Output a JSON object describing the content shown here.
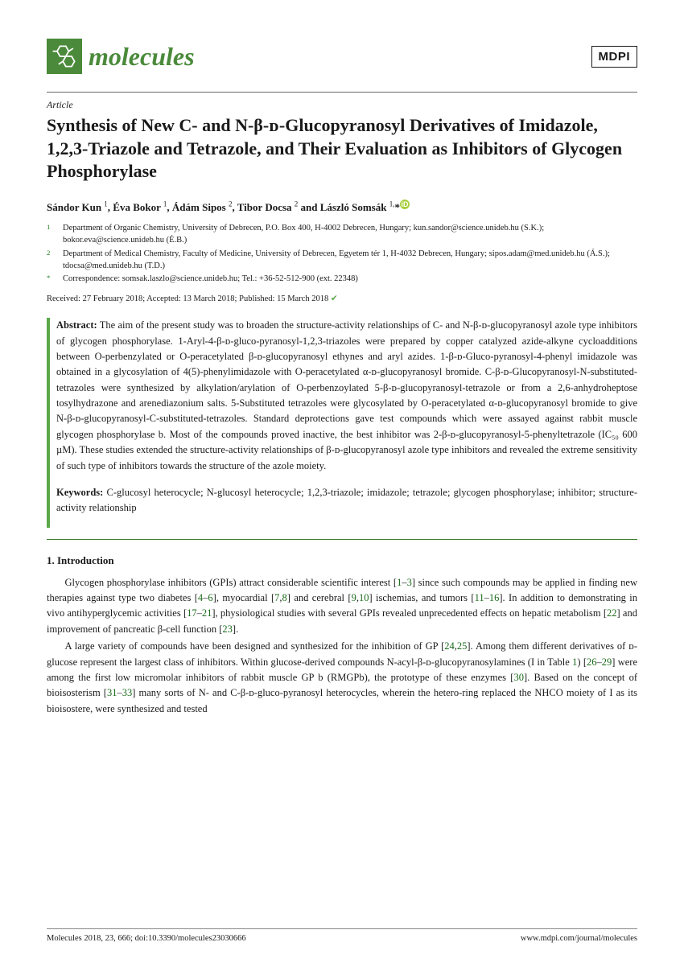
{
  "journal": {
    "name": "molecules",
    "publisher": "MDPI"
  },
  "article": {
    "type": "Article",
    "title": "Synthesis of New C- and N-β-ᴅ-Glucopyranosyl Derivatives of Imidazole, 1,2,3-Triazole and Tetrazole, and Their Evaluation as Inhibitors of Glycogen Phosphorylase",
    "authors_html": "Sándor Kun <sup>1</sup>, Éva Bokor <sup>1</sup>, Ádám Sipos <sup>2</sup>, Tibor Docsa <sup>2</sup> and László Somsák <sup>1,</sup>*",
    "dates": "Received: 27 February 2018; Accepted: 13 March 2018; Published: 15 March 2018",
    "abstract_label": "Abstract:",
    "abstract": "The aim of the present study was to broaden the structure-activity relationships of C- and N-β-ᴅ-glucopyranosyl azole type inhibitors of glycogen phosphorylase. 1-Aryl-4-β-ᴅ-gluco-pyranosyl-1,2,3-triazoles were prepared by copper catalyzed azide-alkyne cycloadditions between O-perbenzylated or O-peracetylated β-ᴅ-glucopyranosyl ethynes and aryl azides. 1-β-ᴅ-Gluco-pyranosyl-4-phenyl imidazole was obtained in a glycosylation of 4(5)-phenylimidazole with O-peracetylated α-ᴅ-glucopyranosyl bromide. C-β-ᴅ-Glucopyranosyl-N-substituted-tetrazoles were synthesized by alkylation/arylation of O-perbenzoylated 5-β-ᴅ-glucopyranosyl-tetrazole or from a 2,6-anhydroheptose tosylhydrazone and arenediazonium salts. 5-Substituted tetrazoles were glycosylated by O-peracetylated α-ᴅ-glucopyranosyl bromide to give N-β-ᴅ-glucopyranosyl-C-substituted-tetrazoles. Standard deprotections gave test compounds which were assayed against rabbit muscle glycogen phosphorylase b. Most of the compounds proved inactive, the best inhibitor was 2-β-ᴅ-glucopyranosyl-5-phenyltetrazole (IC₅₀ 600 µM). These studies extended the structure-activity relationships of β-ᴅ-glucopyranosyl azole type inhibitors and revealed the extreme sensitivity of such type of inhibitors towards the structure of the azole moiety.",
    "keywords_label": "Keywords:",
    "keywords": "C-glucosyl heterocycle; N-glucosyl heterocycle; 1,2,3-triazole; imidazole; tetrazole; glycogen phosphorylase; inhibitor; structure-activity relationship"
  },
  "affiliations": [
    {
      "marker": "1",
      "text": "Department of Organic Chemistry, University of Debrecen, P.O. Box 400, H-4002 Debrecen, Hungary; kun.sandor@science.unideb.hu (S.K.); bokor.eva@science.unideb.hu (É.B.)"
    },
    {
      "marker": "2",
      "text": "Department of Medical Chemistry, Faculty of Medicine, University of Debrecen, Egyetem tér 1, H-4032 Debrecen, Hungary; sipos.adam@med.unideb.hu (Á.S.); tdocsa@med.unideb.hu (T.D.)"
    },
    {
      "marker": "*",
      "text": "Correspondence: somsak.laszlo@science.unideb.hu; Tel.: +36-52-512-900 (ext. 22348)"
    }
  ],
  "section": {
    "heading": "1. Introduction"
  },
  "paragraphs": {
    "p1_a": "Glycogen phosphorylase inhibitors (GPIs) attract considerable scientific interest [",
    "p1_r1": "1",
    "p1_b": "–",
    "p1_r2": "3",
    "p1_c": "] since such compounds may be applied in finding new therapies against type two diabetes [",
    "p1_r3": "4",
    "p1_d": "–",
    "p1_r4": "6",
    "p1_e": "], myocardial [",
    "p1_r5": "7",
    "p1_f": ",",
    "p1_r6": "8",
    "p1_g": "] and cerebral [",
    "p1_r7": "9",
    "p1_h": ",",
    "p1_r8": "10",
    "p1_i": "] ischemias, and tumors [",
    "p1_r9": "11",
    "p1_j": "–",
    "p1_r10": "16",
    "p1_k": "]. In addition to demonstrating in vivo antihyperglycemic activities [",
    "p1_r11": "17",
    "p1_l": "–",
    "p1_r12": "21",
    "p1_m": "], physiological studies with several GPIs revealed unprecedented effects on hepatic metabolism [",
    "p1_r13": "22",
    "p1_n": "] and improvement of pancreatic β-cell function [",
    "p1_r14": "23",
    "p1_o": "].",
    "p2_a": "A large variety of compounds have been designed and synthesized for the inhibition of GP [",
    "p2_r1": "24",
    "p2_b": ",",
    "p2_r2": "25",
    "p2_c": "]. Among them different derivatives of ᴅ-glucose represent the largest class of inhibitors. Within glucose-derived compounds N-acyl-β-ᴅ-glucopyranosylamines (I in Table ",
    "p2_r3": "1",
    "p2_d": ") [",
    "p2_r4": "26",
    "p2_e": "–",
    "p2_r5": "29",
    "p2_f": "] were among the first low micromolar inhibitors of rabbit muscle GP b (RMGPb), the prototype of these enzymes [",
    "p2_r6": "30",
    "p2_g": "]. Based on the concept of bioisosterism [",
    "p2_r7": "31",
    "p2_h": "–",
    "p2_r8": "33",
    "p2_i": "] many sorts of N- and C-β-ᴅ-gluco-pyranosyl heterocycles, wherein the hetero-ring replaced the NHCO moiety of I as its bioisostere, were synthesized and tested"
  },
  "footer": {
    "left": "Molecules 2018, 23, 666; doi:10.3390/molecules23030666",
    "right": "www.mdpi.com/journal/molecules"
  },
  "colors": {
    "accent": "#4a8a3a",
    "ref": "#1a6a1a"
  }
}
